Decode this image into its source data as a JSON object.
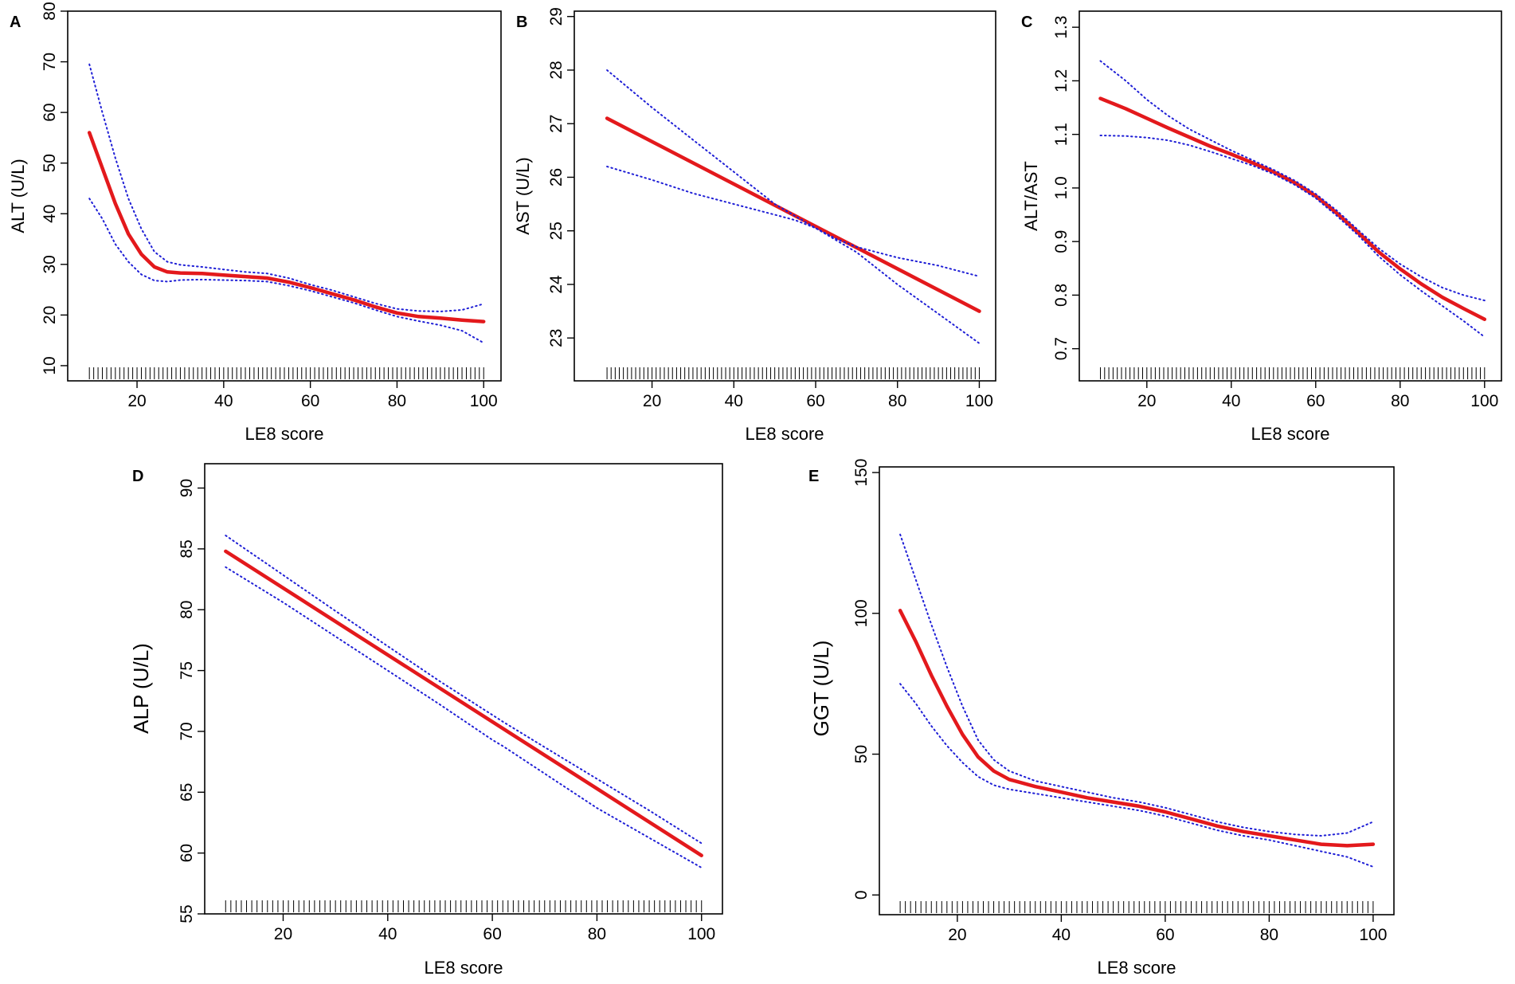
{
  "figure": {
    "panel_count": 5
  },
  "colors": {
    "fit_line": "#e3191c",
    "ci_line": "#1f1fd6",
    "axis": "#000000",
    "rug": "#000000"
  },
  "chart_data": [
    {
      "id": "A",
      "type": "line",
      "panel_label": "A",
      "xlabel": "LE8 score",
      "ylabel": "ALT (U/L)",
      "xlim": [
        4,
        104
      ],
      "ylim": [
        7,
        80
      ],
      "x_ticks": [
        20,
        40,
        60,
        80,
        100
      ],
      "y_ticks": [
        10,
        20,
        30,
        40,
        50,
        60,
        70,
        80
      ],
      "series": [
        {
          "name": "fit",
          "style": "solid",
          "x": [
            9,
            12,
            15,
            18,
            21,
            24,
            27,
            30,
            35,
            40,
            45,
            50,
            55,
            60,
            65,
            70,
            75,
            80,
            85,
            90,
            95,
            100
          ],
          "y": [
            56,
            49,
            42,
            36,
            32,
            29.5,
            28.5,
            28.3,
            28.2,
            27.9,
            27.6,
            27.3,
            26.5,
            25.4,
            24.2,
            23.0,
            21.6,
            20.4,
            19.7,
            19.4,
            19.0,
            18.7
          ]
        },
        {
          "name": "upper 95% CI",
          "style": "dotted",
          "x": [
            9,
            12,
            15,
            18,
            21,
            24,
            27,
            30,
            35,
            40,
            45,
            50,
            55,
            60,
            65,
            70,
            75,
            80,
            85,
            90,
            95,
            100
          ],
          "y": [
            69.5,
            60,
            51,
            43,
            37,
            32.5,
            30.5,
            29.9,
            29.5,
            29.0,
            28.5,
            28.2,
            27.3,
            26.0,
            24.9,
            23.6,
            22.3,
            21.2,
            20.8,
            20.7,
            21.0,
            22.2
          ]
        },
        {
          "name": "lower 95% CI",
          "style": "dotted",
          "x": [
            9,
            12,
            15,
            18,
            21,
            24,
            27,
            30,
            35,
            40,
            45,
            50,
            55,
            60,
            65,
            70,
            75,
            80,
            85,
            90,
            95,
            100
          ],
          "y": [
            43,
            39,
            34,
            30.5,
            28,
            26.8,
            26.6,
            26.9,
            27.0,
            26.9,
            26.8,
            26.6,
            25.8,
            24.8,
            23.6,
            22.4,
            21.0,
            19.7,
            18.8,
            18.0,
            16.9,
            14.5
          ]
        }
      ],
      "rug": {
        "from": 9,
        "to": 100
      }
    },
    {
      "id": "B",
      "type": "line",
      "panel_label": "B",
      "xlabel": "LE8 score",
      "ylabel": "AST (U/L)",
      "xlim": [
        1,
        104
      ],
      "ylim": [
        22.2,
        29.1
      ],
      "x_ticks": [
        20,
        40,
        60,
        80,
        100
      ],
      "y_ticks": [
        23,
        24,
        25,
        26,
        27,
        28,
        29
      ],
      "series": [
        {
          "name": "fit",
          "style": "solid",
          "x": [
            9,
            100
          ],
          "y": [
            27.1,
            23.5
          ]
        },
        {
          "name": "upper 95% CI",
          "style": "dotted",
          "x": [
            9,
            20,
            30,
            40,
            50,
            60,
            65,
            70,
            80,
            90,
            100
          ],
          "y": [
            28.0,
            27.3,
            26.7,
            26.1,
            25.5,
            25.05,
            24.85,
            24.7,
            24.5,
            24.35,
            24.15
          ]
        },
        {
          "name": "lower 95% CI",
          "style": "dotted",
          "x": [
            9,
            20,
            30,
            40,
            50,
            55,
            60,
            70,
            80,
            90,
            100
          ],
          "y": [
            26.2,
            25.95,
            25.7,
            25.5,
            25.3,
            25.2,
            25.05,
            24.6,
            24.0,
            23.45,
            22.9
          ]
        }
      ],
      "rug": {
        "from": 9,
        "to": 100
      }
    },
    {
      "id": "C",
      "type": "line",
      "panel_label": "C",
      "xlabel": "LE8 score",
      "ylabel": "ALT/AST",
      "xlim": [
        4,
        104
      ],
      "ylim": [
        0.64,
        1.33
      ],
      "x_ticks": [
        20,
        40,
        60,
        80,
        100
      ],
      "y_ticks": [
        0.7,
        0.8,
        0.9,
        1.0,
        1.1,
        1.2,
        1.3
      ],
      "y_tick_labels": [
        "0.7",
        "0.8",
        "0.9",
        "1.0",
        "1.1",
        "1.2",
        "1.3"
      ],
      "series": [
        {
          "name": "fit",
          "style": "solid",
          "x": [
            9,
            15,
            20,
            25,
            30,
            35,
            40,
            45,
            50,
            55,
            60,
            65,
            70,
            75,
            80,
            85,
            90,
            95,
            100
          ],
          "y": [
            1.167,
            1.148,
            1.13,
            1.112,
            1.095,
            1.078,
            1.063,
            1.047,
            1.03,
            1.01,
            0.985,
            0.953,
            0.917,
            0.88,
            0.849,
            0.821,
            0.796,
            0.775,
            0.755
          ]
        },
        {
          "name": "upper 95% CI",
          "style": "dotted",
          "x": [
            9,
            15,
            20,
            25,
            30,
            35,
            40,
            45,
            50,
            55,
            60,
            65,
            70,
            75,
            80,
            85,
            90,
            95,
            100
          ],
          "y": [
            1.237,
            1.2,
            1.165,
            1.135,
            1.11,
            1.09,
            1.07,
            1.052,
            1.034,
            1.014,
            0.989,
            0.958,
            0.922,
            0.887,
            0.858,
            0.834,
            0.814,
            0.8,
            0.79
          ]
        },
        {
          "name": "lower 95% CI",
          "style": "dotted",
          "x": [
            9,
            15,
            20,
            25,
            30,
            35,
            40,
            45,
            50,
            55,
            60,
            65,
            70,
            75,
            80,
            85,
            90,
            95,
            100
          ],
          "y": [
            1.098,
            1.097,
            1.094,
            1.089,
            1.08,
            1.068,
            1.055,
            1.042,
            1.026,
            1.006,
            0.981,
            0.948,
            0.912,
            0.872,
            0.838,
            0.808,
            0.78,
            0.752,
            0.722
          ]
        }
      ],
      "rug": {
        "from": 9,
        "to": 100
      }
    },
    {
      "id": "D",
      "type": "line",
      "panel_label": "D",
      "xlabel": "LE8 score",
      "ylabel": "ALP (U/L)",
      "xlim": [
        5,
        104
      ],
      "ylim": [
        55,
        92
      ],
      "x_ticks": [
        20,
        40,
        60,
        80,
        100
      ],
      "y_ticks": [
        55,
        60,
        65,
        70,
        75,
        80,
        85,
        90
      ],
      "series": [
        {
          "name": "fit",
          "style": "solid",
          "x": [
            9,
            100
          ],
          "y": [
            84.8,
            59.8
          ]
        },
        {
          "name": "upper 95% CI",
          "style": "dotted",
          "x": [
            9,
            30,
            50,
            62,
            70,
            80,
            90,
            100
          ],
          "y": [
            86.1,
            79.9,
            74.1,
            70.8,
            68.7,
            66.1,
            63.5,
            60.8
          ]
        },
        {
          "name": "lower 95% CI",
          "style": "dotted",
          "x": [
            9,
            20,
            30,
            40,
            50,
            60,
            62,
            80,
            100
          ],
          "y": [
            83.5,
            80.6,
            77.8,
            75.0,
            72.2,
            69.3,
            68.8,
            63.7,
            58.8
          ]
        }
      ],
      "rug": {
        "from": 9,
        "to": 100
      }
    },
    {
      "id": "E",
      "type": "line",
      "panel_label": "E",
      "xlabel": "LE8 score",
      "ylabel": "GGT (U/L)",
      "xlim": [
        5,
        104
      ],
      "ylim": [
        -7,
        152
      ],
      "x_ticks": [
        20,
        40,
        60,
        80,
        100
      ],
      "y_ticks": [
        0,
        50,
        100,
        150
      ],
      "series": [
        {
          "name": "fit",
          "style": "solid",
          "x": [
            9,
            12,
            15,
            18,
            21,
            24,
            27,
            30,
            35,
            40,
            45,
            50,
            55,
            60,
            65,
            70,
            75,
            80,
            85,
            90,
            95,
            100
          ],
          "y": [
            101,
            90,
            78,
            67,
            57,
            49,
            44,
            41,
            38.5,
            36.5,
            34.5,
            33,
            31.5,
            29.5,
            27,
            24.5,
            22.5,
            21,
            19.5,
            18,
            17.5,
            18
          ]
        },
        {
          "name": "upper 95% CI",
          "style": "dotted",
          "x": [
            9,
            12,
            15,
            18,
            21,
            24,
            27,
            30,
            35,
            40,
            45,
            50,
            55,
            60,
            65,
            70,
            75,
            80,
            85,
            90,
            95,
            100
          ],
          "y": [
            128,
            112,
            96,
            81,
            67,
            55,
            48,
            44,
            40.5,
            38.5,
            36.5,
            34.5,
            33,
            31,
            28.5,
            26,
            24,
            22.5,
            21.5,
            21,
            22,
            26
          ]
        },
        {
          "name": "lower 95% CI",
          "style": "dotted",
          "x": [
            9,
            12,
            15,
            18,
            21,
            24,
            27,
            30,
            35,
            40,
            45,
            50,
            55,
            60,
            65,
            70,
            75,
            80,
            85,
            90,
            95,
            100
          ],
          "y": [
            75,
            68,
            60,
            53,
            47,
            42,
            39,
            37.5,
            36,
            34.5,
            33,
            31.5,
            30,
            28,
            25.5,
            23,
            21,
            19.5,
            17.5,
            15.5,
            13.5,
            10
          ]
        }
      ],
      "rug": {
        "from": 9,
        "to": 100
      }
    }
  ]
}
